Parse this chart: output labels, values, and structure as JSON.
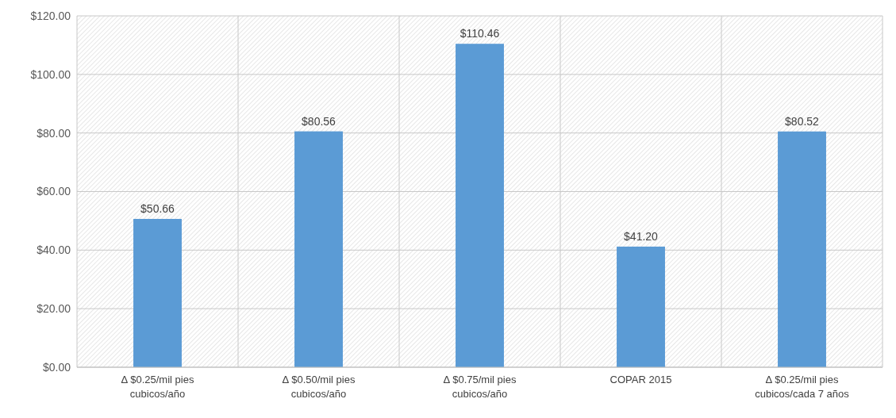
{
  "chart_data": {
    "type": "bar",
    "categories": [
      "Δ $0.25/mil pies cubicos/año",
      "Δ $0.50/mil pies cubicos/año",
      "Δ $0.75/mil pies cubicos/año",
      "COPAR 2015",
      "Δ $0.25/mil pies cubicos/cada 7 años"
    ],
    "values": [
      50.66,
      80.56,
      110.46,
      41.2,
      80.52
    ],
    "value_labels": [
      "$50.66",
      "$80.56",
      "$110.46",
      "$41.20",
      "$80.52"
    ],
    "color": "#5b9bd5",
    "ylim": [
      0,
      120
    ],
    "yticks": [
      {
        "value": 0,
        "label": "$0.00"
      },
      {
        "value": 20,
        "label": "$20.00"
      },
      {
        "value": 40,
        "label": "$40.00"
      },
      {
        "value": 60,
        "label": "$60.00"
      },
      {
        "value": 80,
        "label": "$80.00"
      },
      {
        "value": 100,
        "label": "$100.00"
      },
      {
        "value": 120,
        "label": "$120.00"
      }
    ],
    "grid": true
  }
}
